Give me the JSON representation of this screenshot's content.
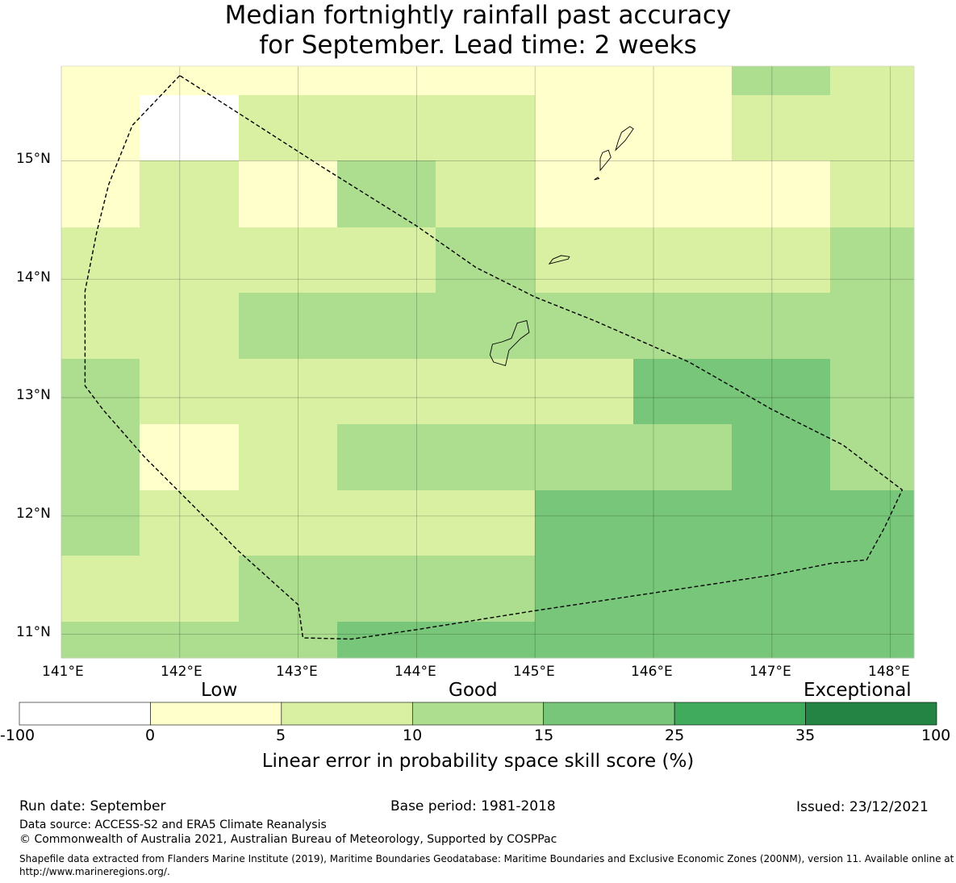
{
  "title": {
    "line1": "Median fortnightly rainfall past accuracy",
    "line2": "for September. Lead time: 2 weeks"
  },
  "map": {
    "lon_range": [
      141.0,
      148.2
    ],
    "lat_range": [
      10.8,
      15.8
    ],
    "x_ticks": [
      "141°E",
      "142°E",
      "143°E",
      "144°E",
      "145°E",
      "146°E",
      "147°E",
      "148°E"
    ],
    "y_ticks": [
      "15°N",
      "14°N",
      "13°N",
      "12°N",
      "11°N"
    ],
    "colors": {
      "white": "#ffffff",
      "yellow": "#ffffcc",
      "light": "#d9f0a3",
      "mid": "#addd8e",
      "green": "#78c679",
      "green2": "#41ab5d",
      "dark": "#238443"
    },
    "rows_top_to_bottom": [
      [
        "yellow",
        "yellow",
        "yellow",
        "yellow",
        "yellow",
        "yellow",
        "yellow",
        "mid",
        "light"
      ],
      [
        "yellow",
        "white",
        "light",
        "light",
        "light",
        "yellow",
        "yellow",
        "light",
        "light"
      ],
      [
        "yellow",
        "light",
        "yellow",
        "mid",
        "light",
        "yellow",
        "yellow",
        "yellow",
        "light"
      ],
      [
        "light",
        "light",
        "light",
        "light",
        "mid",
        "light",
        "light",
        "light",
        "mid"
      ],
      [
        "light",
        "light",
        "mid",
        "mid",
        "mid",
        "mid",
        "mid",
        "mid",
        "mid"
      ],
      [
        "mid",
        "light",
        "light",
        "light",
        "light",
        "light",
        "green",
        "green",
        "mid"
      ],
      [
        "mid",
        "yellow",
        "light",
        "mid",
        "mid",
        "mid",
        "mid",
        "green",
        "mid"
      ],
      [
        "mid",
        "light",
        "light",
        "light",
        "light",
        "green",
        "green",
        "green",
        "green"
      ],
      [
        "light",
        "light",
        "mid",
        "mid",
        "mid",
        "green",
        "green",
        "green",
        "green"
      ],
      [
        "mid",
        "mid",
        "mid",
        "green",
        "green",
        "green",
        "green",
        "green",
        "green"
      ]
    ],
    "boundary_lonlat": [
      [
        142.0,
        15.72
      ],
      [
        141.6,
        15.3
      ],
      [
        141.4,
        14.8
      ],
      [
        141.3,
        14.4
      ],
      [
        141.2,
        13.9
      ],
      [
        141.2,
        13.5
      ],
      [
        141.2,
        13.1
      ],
      [
        141.35,
        12.9
      ],
      [
        141.7,
        12.5
      ],
      [
        142.1,
        12.1
      ],
      [
        142.5,
        11.7
      ],
      [
        143.0,
        11.25
      ],
      [
        143.04,
        10.97
      ],
      [
        143.45,
        10.96
      ],
      [
        144.0,
        11.04
      ],
      [
        145.0,
        11.2
      ],
      [
        146.0,
        11.35
      ],
      [
        147.0,
        11.5
      ],
      [
        147.5,
        11.6
      ],
      [
        147.8,
        11.63
      ],
      [
        147.95,
        11.9
      ],
      [
        148.1,
        12.22
      ],
      [
        147.6,
        12.6
      ],
      [
        147.0,
        12.9
      ],
      [
        146.3,
        13.3
      ],
      [
        145.5,
        13.65
      ],
      [
        145.0,
        13.85
      ],
      [
        144.5,
        14.1
      ],
      [
        144.0,
        14.45
      ],
      [
        143.2,
        14.95
      ],
      [
        142.5,
        15.4
      ],
      [
        142.0,
        15.72
      ]
    ],
    "islands_lonlat": [
      [
        [
          144.65,
          13.3
        ],
        [
          144.75,
          13.27
        ],
        [
          144.78,
          13.4
        ],
        [
          144.88,
          13.5
        ],
        [
          144.95,
          13.55
        ],
        [
          144.93,
          13.65
        ],
        [
          144.85,
          13.63
        ],
        [
          144.8,
          13.5
        ],
        [
          144.72,
          13.47
        ],
        [
          144.64,
          13.45
        ],
        [
          144.62,
          13.36
        ],
        [
          144.65,
          13.3
        ]
      ],
      [
        [
          145.12,
          14.13
        ],
        [
          145.2,
          14.15
        ],
        [
          145.28,
          14.17
        ],
        [
          145.29,
          14.19
        ],
        [
          145.22,
          14.2
        ],
        [
          145.15,
          14.17
        ],
        [
          145.12,
          14.13
        ]
      ],
      [
        [
          145.55,
          14.92
        ],
        [
          145.6,
          14.98
        ],
        [
          145.64,
          15.03
        ],
        [
          145.62,
          15.09
        ],
        [
          145.57,
          15.07
        ],
        [
          145.55,
          15.02
        ],
        [
          145.55,
          14.92
        ]
      ],
      [
        [
          145.68,
          15.09
        ],
        [
          145.76,
          15.17
        ],
        [
          145.83,
          15.27
        ],
        [
          145.8,
          15.29
        ],
        [
          145.73,
          15.24
        ],
        [
          145.7,
          15.16
        ],
        [
          145.68,
          15.09
        ]
      ],
      [
        [
          145.5,
          14.84
        ],
        [
          145.54,
          14.85
        ],
        [
          145.53,
          14.86
        ],
        [
          145.5,
          14.84
        ]
      ]
    ]
  },
  "colorbar": {
    "words": {
      "low": "Low",
      "good": "Good",
      "exceptional": "Exceptional"
    },
    "labels": [
      "-100",
      "0",
      "5",
      "10",
      "15",
      "25",
      "35",
      "100"
    ],
    "colors": [
      "#ffffff",
      "#ffffcc",
      "#d9f0a3",
      "#addd8e",
      "#78c679",
      "#41ab5d",
      "#238443"
    ],
    "title": "Linear error in probability space skill score (%)"
  },
  "footer": {
    "run_date": "Run date: September",
    "base_period": "Base period: 1981-2018",
    "issued": "Issued: 23/12/2021",
    "data_source": "Data source: ACCESS-S2 and ERA5 Climate Reanalysis",
    "copyright": "© Commonwealth of Australia 2021, Australian Bureau of Meteorology, Supported by COSPPac",
    "shapefile": "Shapefile data extracted from Flanders Marine Institute (2019), Maritime Boundaries Geodatabase: Maritime Boundaries and Exclusive Economic Zones (200NM), version 11. Available online at http://www.marineregions.org/."
  }
}
